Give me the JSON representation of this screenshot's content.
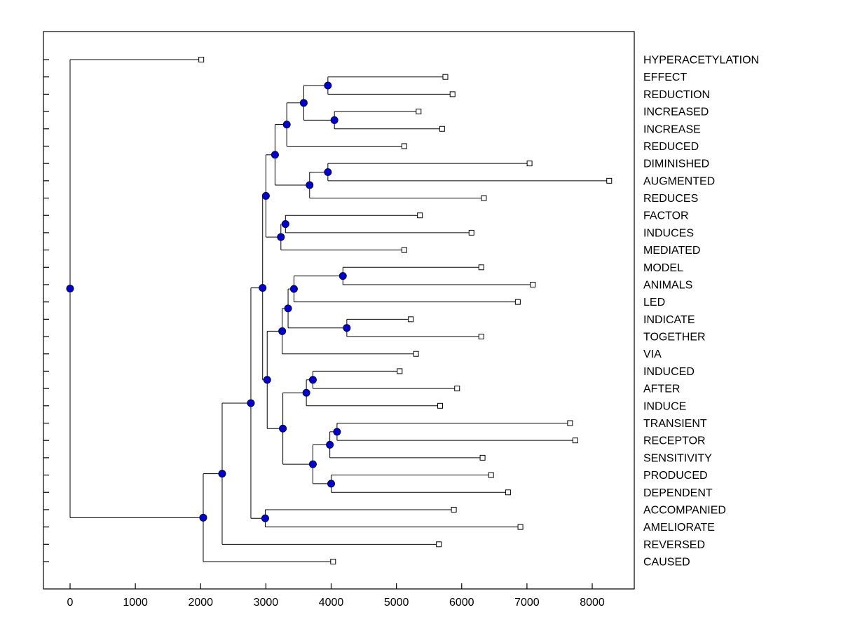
{
  "figure": {
    "background": "#ffffff",
    "plot_background": "#ffffff",
    "border_color": "#000000"
  },
  "chart_data": {
    "type": "dendrogram",
    "orientation": "left-to-right",
    "title": "",
    "xlabel": "",
    "ylabel": "",
    "grid": false,
    "legend": "none",
    "xlim": [
      -408,
      8644
    ],
    "x_ticks": [
      0,
      1000,
      2000,
      3000,
      4000,
      5000,
      6000,
      7000,
      8000
    ],
    "x_tick_labels": [
      "0",
      "1000",
      "2000",
      "3000",
      "4000",
      "5000",
      "6000",
      "7000",
      "8000"
    ],
    "marker_style": {
      "leaf": "open-square",
      "internal": "filled-circle"
    },
    "colors": {
      "line": "#000000",
      "node_fill": "#0000cc",
      "node_edge": "#000041",
      "leaf_fill": "#ffffff",
      "leaf_edge": "#000000",
      "text": "#000000"
    },
    "leaves": [
      {
        "id": "L1",
        "label": "HYPERACETYLATION",
        "dist": 2010
      },
      {
        "id": "L2",
        "label": "EFFECT",
        "dist": 5750
      },
      {
        "id": "L3",
        "label": "REDUCTION",
        "dist": 5860
      },
      {
        "id": "L4",
        "label": "INCREASED",
        "dist": 5340
      },
      {
        "id": "L5",
        "label": "INCREASE",
        "dist": 5700
      },
      {
        "id": "L6",
        "label": "REDUCED",
        "dist": 5120
      },
      {
        "id": "L7",
        "label": "DIMINISHED",
        "dist": 7040
      },
      {
        "id": "L8",
        "label": "AUGMENTED",
        "dist": 8260
      },
      {
        "id": "L9",
        "label": "REDUCES",
        "dist": 6340
      },
      {
        "id": "L10",
        "label": "FACTOR",
        "dist": 5360
      },
      {
        "id": "L11",
        "label": "INDUCES",
        "dist": 6150
      },
      {
        "id": "L12",
        "label": "MEDIATED",
        "dist": 5120
      },
      {
        "id": "L13",
        "label": "MODEL",
        "dist": 6300
      },
      {
        "id": "L14",
        "label": "ANIMALS",
        "dist": 7090
      },
      {
        "id": "L15",
        "label": "LED",
        "dist": 6860
      },
      {
        "id": "L16",
        "label": "INDICATE",
        "dist": 5220
      },
      {
        "id": "L17",
        "label": "TOGETHER",
        "dist": 6300
      },
      {
        "id": "L18",
        "label": "VIA",
        "dist": 5300
      },
      {
        "id": "L19",
        "label": "INDUCED",
        "dist": 5050
      },
      {
        "id": "L20",
        "label": "AFTER",
        "dist": 5930
      },
      {
        "id": "L21",
        "label": "INDUCE",
        "dist": 5670
      },
      {
        "id": "L22",
        "label": "TRANSIENT",
        "dist": 7660
      },
      {
        "id": "L23",
        "label": "RECEPTOR",
        "dist": 7740
      },
      {
        "id": "L24",
        "label": "SENSITIVITY",
        "dist": 6320
      },
      {
        "id": "L25",
        "label": "PRODUCED",
        "dist": 6450
      },
      {
        "id": "L26",
        "label": "DEPENDENT",
        "dist": 6710
      },
      {
        "id": "L27",
        "label": "ACCOMPANIED",
        "dist": 5880
      },
      {
        "id": "L28",
        "label": "AMELIORATE",
        "dist": 6900
      },
      {
        "id": "L29",
        "label": "REVERSED",
        "dist": 5650
      },
      {
        "id": "L30",
        "label": "CAUSED",
        "dist": 4030
      }
    ],
    "nodes": [
      {
        "id": "N1",
        "dist": 3950,
        "children": [
          "L2",
          "L3"
        ]
      },
      {
        "id": "N2",
        "dist": 4050,
        "children": [
          "L4",
          "L5"
        ]
      },
      {
        "id": "N3",
        "dist": 3580,
        "children": [
          "N1",
          "N2"
        ]
      },
      {
        "id": "N4",
        "dist": 3320,
        "children": [
          "N3",
          "L6"
        ]
      },
      {
        "id": "N5",
        "dist": 3950,
        "children": [
          "L7",
          "L8"
        ]
      },
      {
        "id": "N6",
        "dist": 3670,
        "children": [
          "N5",
          "L9"
        ]
      },
      {
        "id": "N7",
        "dist": 3140,
        "children": [
          "N4",
          "N6"
        ]
      },
      {
        "id": "N8",
        "dist": 3300,
        "children": [
          "L10",
          "L11"
        ]
      },
      {
        "id": "N9",
        "dist": 3230,
        "children": [
          "N8",
          "L12"
        ]
      },
      {
        "id": "N10",
        "dist": 3000,
        "children": [
          "N7",
          "N9"
        ]
      },
      {
        "id": "N11",
        "dist": 4180,
        "children": [
          "L13",
          "L14"
        ]
      },
      {
        "id": "N12",
        "dist": 3430,
        "children": [
          "N11",
          "L15"
        ]
      },
      {
        "id": "N13",
        "dist": 4240,
        "children": [
          "L16",
          "L17"
        ]
      },
      {
        "id": "N14",
        "dist": 3340,
        "children": [
          "N12",
          "N13"
        ]
      },
      {
        "id": "N15",
        "dist": 3250,
        "children": [
          "N14",
          "L18"
        ]
      },
      {
        "id": "N16",
        "dist": 3720,
        "children": [
          "L19",
          "L20"
        ]
      },
      {
        "id": "N17",
        "dist": 3620,
        "children": [
          "N16",
          "L21"
        ]
      },
      {
        "id": "N18",
        "dist": 4090,
        "children": [
          "L22",
          "L23"
        ]
      },
      {
        "id": "N19",
        "dist": 3980,
        "children": [
          "N18",
          "L24"
        ]
      },
      {
        "id": "N20",
        "dist": 4000,
        "children": [
          "L25",
          "L26"
        ]
      },
      {
        "id": "N21",
        "dist": 3720,
        "children": [
          "N19",
          "N20"
        ]
      },
      {
        "id": "N22",
        "dist": 3260,
        "children": [
          "N17",
          "N21"
        ]
      },
      {
        "id": "N23",
        "dist": 3020,
        "children": [
          "N15",
          "N22"
        ]
      },
      {
        "id": "N24",
        "dist": 2950,
        "children": [
          "N10",
          "N23"
        ]
      },
      {
        "id": "N25",
        "dist": 2990,
        "children": [
          "L27",
          "L28"
        ]
      },
      {
        "id": "N26",
        "dist": 2770,
        "children": [
          "N24",
          "N25"
        ]
      },
      {
        "id": "N27",
        "dist": 2330,
        "children": [
          "N26",
          "L29"
        ]
      },
      {
        "id": "N28",
        "dist": 2040,
        "children": [
          "N27",
          "L30"
        ]
      },
      {
        "id": "N29",
        "dist": 0,
        "children": [
          "L1",
          "N28"
        ]
      }
    ],
    "root": "N29"
  }
}
